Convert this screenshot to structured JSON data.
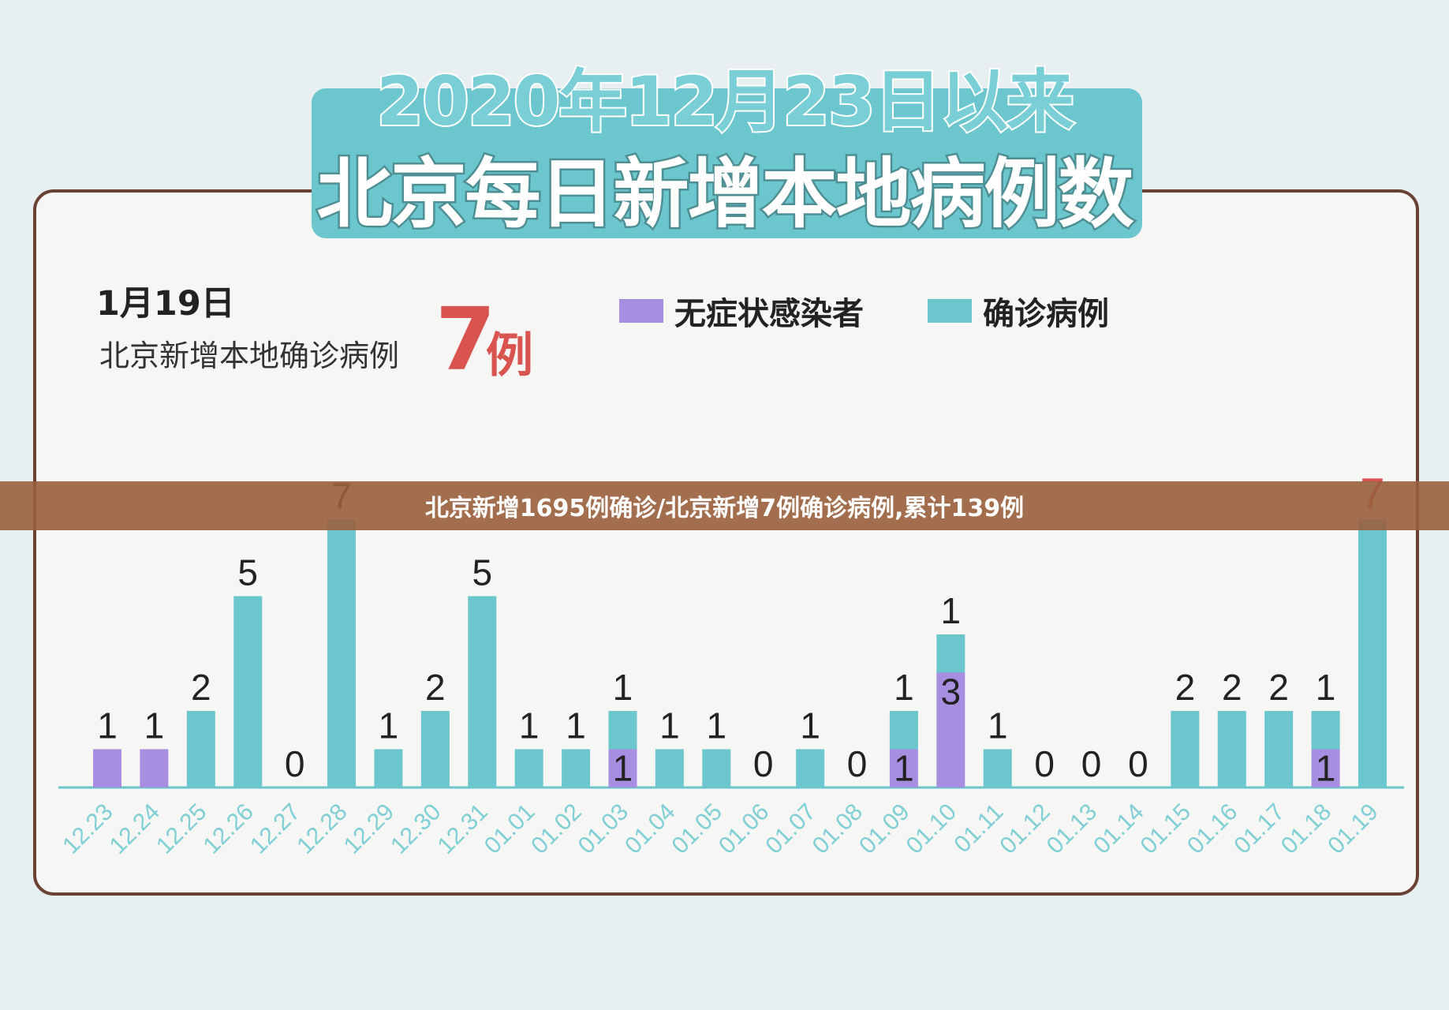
{
  "header": {
    "title_line1": "2020年12月23日以来",
    "title_line2": "北京每日新增本地病例数"
  },
  "info": {
    "date": "1月19日",
    "label": "北京新增本地确诊病例",
    "value": "7",
    "unit": "例"
  },
  "legend": [
    {
      "name": "无症状感染者",
      "color": "#a88ee0"
    },
    {
      "name": "确诊病例",
      "color": "#6cc6cd"
    }
  ],
  "banner": {
    "text": "北京新增1695例确诊/北京新增7例确诊病例,累计139例"
  },
  "chart_data": {
    "type": "bar",
    "stacked": true,
    "categories": [
      "12.23",
      "12.24",
      "12.25",
      "12.26",
      "12.27",
      "12.28",
      "12.29",
      "12.30",
      "12.31",
      "01.01",
      "01.02",
      "01.03",
      "01.04",
      "01.05",
      "01.06",
      "01.07",
      "01.08",
      "01.09",
      "01.10",
      "01.11",
      "01.12",
      "01.13",
      "01.14",
      "01.15",
      "01.16",
      "01.17",
      "01.18",
      "01.19"
    ],
    "series": [
      {
        "name": "无症状感染者",
        "values": [
          1,
          1,
          0,
          0,
          0,
          0,
          0,
          0,
          0,
          0,
          0,
          1,
          0,
          0,
          0,
          0,
          0,
          1,
          3,
          0,
          0,
          0,
          0,
          0,
          0,
          0,
          1,
          0
        ]
      },
      {
        "name": "确诊病例",
        "values": [
          0,
          0,
          2,
          5,
          0,
          7,
          1,
          2,
          5,
          1,
          1,
          1,
          1,
          1,
          0,
          1,
          0,
          1,
          1,
          1,
          0,
          0,
          0,
          2,
          2,
          2,
          1,
          7
        ]
      }
    ],
    "colors": {
      "asymptomatic": "#a88ee0",
      "confirmed": "#6cc6cd",
      "highlight": "#d9534f",
      "axis_label": "#7fcfd5"
    },
    "ylim": [
      0,
      7
    ],
    "legend_position": "top-right"
  }
}
